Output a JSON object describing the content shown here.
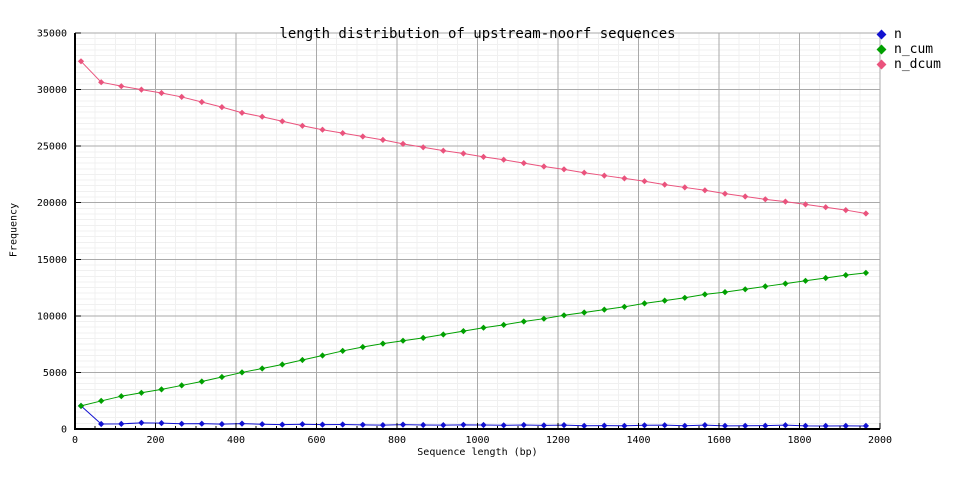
{
  "chart_data": {
    "type": "line",
    "title": "length distribution of upstream-noorf sequences",
    "xlabel": "Sequence length (bp)",
    "ylabel": "Frequency",
    "xlim": [
      0,
      2000
    ],
    "ylim": [
      0,
      35000
    ],
    "xticks": [
      0,
      200,
      400,
      600,
      800,
      1000,
      1200,
      1400,
      1600,
      1800,
      2000
    ],
    "yticks": [
      0,
      5000,
      10000,
      15000,
      20000,
      25000,
      30000,
      35000
    ],
    "grid": true,
    "legend_position": "top-right-outside",
    "background_color": "#ffffff",
    "grid_major_color": "#aaaaaa",
    "grid_minor_color": "#f0f0f0",
    "axis_color": "#000000",
    "x": [
      15,
      65,
      115,
      165,
      215,
      265,
      315,
      365,
      415,
      465,
      515,
      565,
      615,
      665,
      715,
      765,
      815,
      865,
      915,
      965,
      1015,
      1065,
      1115,
      1165,
      1215,
      1265,
      1315,
      1365,
      1415,
      1465,
      1515,
      1565,
      1615,
      1665,
      1715,
      1765,
      1815,
      1865,
      1915,
      1965
    ],
    "series": [
      {
        "name": "n",
        "color": "#1212d0",
        "values": [
          2040,
          440,
          455,
          545,
          520,
          460,
          470,
          430,
          475,
          420,
          390,
          420,
          390,
          395,
          370,
          345,
          390,
          350,
          345,
          370,
          350,
          330,
          355,
          320,
          345,
          285,
          300,
          285,
          330,
          340,
          285,
          345,
          280,
          285,
          295,
          340,
          280,
          270,
          275,
          270
        ]
      },
      {
        "name": "n_cum",
        "color": "#00a000",
        "values": [
          2040,
          2480,
          2900,
          3200,
          3500,
          3850,
          4200,
          4600,
          5000,
          5350,
          5700,
          6100,
          6500,
          6900,
          7250,
          7550,
          7800,
          8050,
          8350,
          8650,
          8950,
          9200,
          9500,
          9750,
          10050,
          10300,
          10550,
          10800,
          11100,
          11350,
          11600,
          11900,
          12100,
          12350,
          12600,
          12850,
          13100,
          13350,
          13600,
          13800
        ]
      },
      {
        "name": "n_dcum",
        "color": "#ea537d",
        "values": [
          32500,
          30650,
          30300,
          30000,
          29700,
          29350,
          28900,
          28450,
          27950,
          27600,
          27200,
          26800,
          26450,
          26150,
          25850,
          25550,
          25200,
          24900,
          24600,
          24350,
          24050,
          23800,
          23500,
          23200,
          22950,
          22650,
          22400,
          22150,
          21900,
          21600,
          21350,
          21100,
          20800,
          20550,
          20300,
          20100,
          19850,
          19600,
          19350,
          19050
        ]
      }
    ]
  }
}
